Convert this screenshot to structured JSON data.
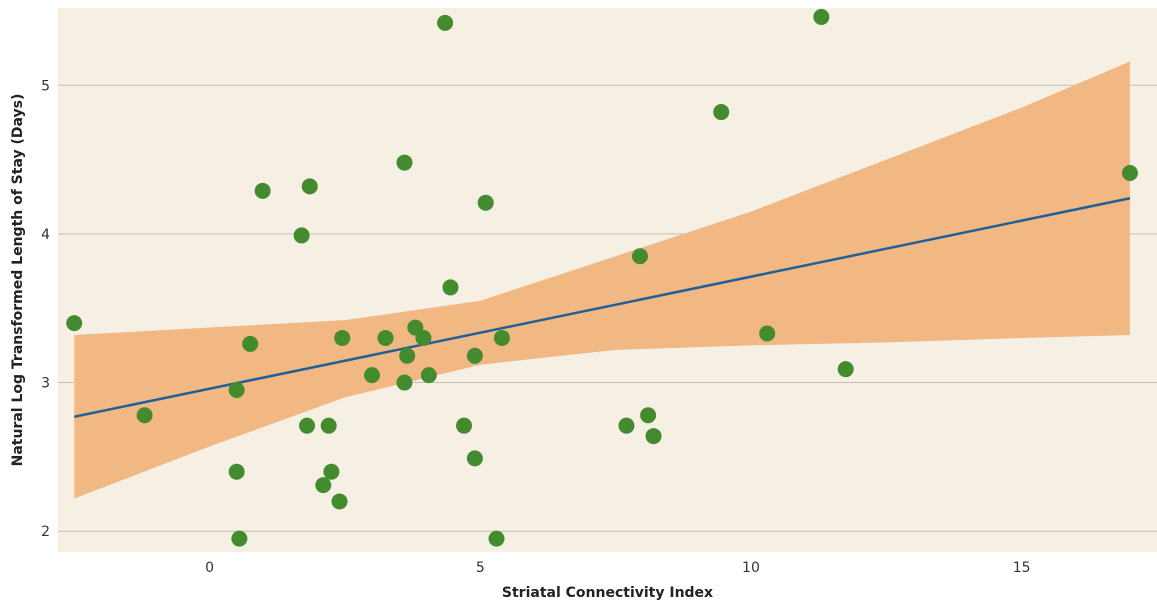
{
  "chart_data": {
    "type": "scatter",
    "xlabel": "Striatal Connectivity Index",
    "ylabel": "Natural Log Transformed Length of Stay (Days)",
    "xlim": [
      -2.8,
      17.5
    ],
    "ylim": [
      1.86,
      5.52
    ],
    "xticks": [
      0,
      5,
      10,
      15
    ],
    "yticks": [
      2,
      3,
      4,
      5
    ],
    "grid": "horizontal",
    "colors": {
      "panel": "#f5efe4",
      "grid": "#c8bfb0",
      "points": "#448a2f",
      "fit_line": "#1f6096",
      "confidence_band": "#f2b884"
    },
    "points": {
      "x": [
        -2.5,
        -1.2,
        0.5,
        0.5,
        0.55,
        0.75,
        0.98,
        1.7,
        1.8,
        1.85,
        2.1,
        2.2,
        2.25,
        2.4,
        2.45,
        3.0,
        3.25,
        3.6,
        3.6,
        3.65,
        3.8,
        3.95,
        4.05,
        4.35,
        4.45,
        4.7,
        4.9,
        4.9,
        5.1,
        5.3,
        5.4,
        7.7,
        8.1,
        8.2,
        7.95,
        9.45,
        10.3,
        11.3,
        11.75,
        17.0
      ],
      "y": [
        3.4,
        2.78,
        2.95,
        2.4,
        1.95,
        3.26,
        4.29,
        3.99,
        2.71,
        4.32,
        2.31,
        2.71,
        2.4,
        2.2,
        3.3,
        3.05,
        3.3,
        4.48,
        3.0,
        3.18,
        3.37,
        3.3,
        3.05,
        5.42,
        3.64,
        2.71,
        3.18,
        2.49,
        4.21,
        1.95,
        3.3,
        2.71,
        2.78,
        2.64,
        3.85,
        4.82,
        3.33,
        5.46,
        3.09,
        4.41
      ]
    },
    "fit": {
      "x": [
        -2.5,
        17.0
      ],
      "y": [
        2.77,
        4.24
      ]
    },
    "confidence_band": {
      "x": [
        -2.5,
        0,
        2.5,
        5,
        7.5,
        10,
        12.5,
        15,
        17.0
      ],
      "lower": [
        2.22,
        2.57,
        2.9,
        3.12,
        3.22,
        3.25,
        3.27,
        3.3,
        3.32
      ],
      "upper": [
        3.32,
        3.37,
        3.42,
        3.55,
        3.85,
        4.15,
        4.5,
        4.85,
        5.16
      ]
    }
  }
}
